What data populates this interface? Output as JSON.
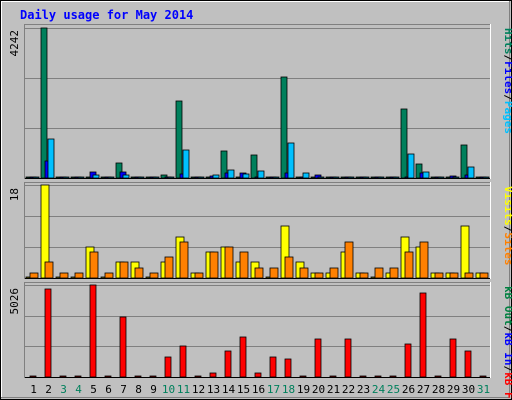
{
  "title": "Daily usage for May 2014",
  "colors": {
    "page_bg": "#c0c0c0",
    "panel_bg": "#c0c0c0",
    "title": "#0000ff",
    "hits": "#00805c",
    "files": "#0000ff",
    "pages": "#00c0ff",
    "visits": "#ffff00",
    "sites": "#ff8000",
    "kb_in": "#0000ff",
    "kb_out": "#008040",
    "kb_f": "#ff0000",
    "weekend_label": "#00805c",
    "weekday_label": "#000000"
  },
  "panel_labels": {
    "top": [
      {
        "text": "Pages",
        "color": "#00c0ff"
      },
      {
        "text": "/",
        "color": "#000000"
      },
      {
        "text": "Files",
        "color": "#0000ff"
      },
      {
        "text": "/",
        "color": "#000000"
      },
      {
        "text": "Hits",
        "color": "#00805c"
      }
    ],
    "middle": [
      {
        "text": "Sites",
        "color": "#ff8000"
      },
      {
        "text": "/",
        "color": "#000000"
      },
      {
        "text": "Visits",
        "color": "#ffff00"
      }
    ],
    "bottom": [
      {
        "text": "kB F",
        "color": "#ff0000"
      },
      {
        "text": "/",
        "color": "#000000"
      },
      {
        "text": "kB In",
        "color": "#0000ff"
      },
      {
        "text": "/",
        "color": "#000000"
      },
      {
        "text": "kB Out",
        "color": "#008040"
      }
    ]
  },
  "chart_data": [
    {
      "type": "bar",
      "panel": "top",
      "ymax_label": "4242",
      "ylim": [
        0,
        4242
      ],
      "grid": true,
      "categories": [
        "1",
        "2",
        "3",
        "4",
        "5",
        "6",
        "7",
        "8",
        "9",
        "10",
        "11",
        "12",
        "13",
        "14",
        "15",
        "16",
        "17",
        "18",
        "19",
        "20",
        "21",
        "22",
        "23",
        "24",
        "25",
        "26",
        "27",
        "28",
        "29",
        "30",
        "31"
      ],
      "weekend_days": [
        3,
        4,
        10,
        11,
        17,
        18,
        24,
        25,
        31
      ],
      "series": [
        {
          "name": "Hits",
          "values": [
            20,
            4242,
            20,
            20,
            20,
            20,
            420,
            20,
            20,
            80,
            2180,
            20,
            20,
            760,
            20,
            640,
            20,
            2860,
            20,
            20,
            20,
            20,
            20,
            20,
            20,
            1950,
            400,
            20,
            20,
            920,
            20
          ]
        },
        {
          "name": "Files",
          "values": [
            10,
            480,
            10,
            10,
            180,
            10,
            160,
            10,
            10,
            10,
            110,
            10,
            70,
            130,
            130,
            10,
            10,
            150,
            40,
            80,
            10,
            30,
            10,
            10,
            10,
            20,
            130,
            10,
            60,
            80,
            10
          ]
        },
        {
          "name": "Pages",
          "values": [
            0,
            1100,
            0,
            0,
            80,
            0,
            80,
            0,
            0,
            0,
            780,
            0,
            80,
            220,
            110,
            200,
            30,
            1000,
            150,
            10,
            0,
            40,
            0,
            0,
            0,
            680,
            160,
            30,
            10,
            300,
            0
          ]
        }
      ]
    },
    {
      "type": "bar",
      "panel": "middle",
      "ymax_label": "18",
      "ylim": [
        0,
        18
      ],
      "grid": true,
      "categories": [
        "1",
        "2",
        "3",
        "4",
        "5",
        "6",
        "7",
        "8",
        "9",
        "10",
        "11",
        "12",
        "13",
        "14",
        "15",
        "16",
        "17",
        "18",
        "19",
        "20",
        "21",
        "22",
        "23",
        "24",
        "25",
        "26",
        "27",
        "28",
        "29",
        "30",
        "31"
      ],
      "weekend_days": [
        3,
        4,
        10,
        11,
        17,
        18,
        24,
        25,
        31
      ],
      "series": [
        {
          "name": "Visits",
          "values": [
            0,
            18,
            0,
            0,
            6,
            0,
            3,
            3,
            0,
            3,
            8,
            1,
            5,
            6,
            3,
            3,
            0,
            10,
            3,
            1,
            1,
            5,
            1,
            0,
            1,
            8,
            6,
            1,
            1,
            10,
            1
          ]
        },
        {
          "name": "Sites",
          "values": [
            1,
            3,
            1,
            1,
            5,
            1,
            3,
            2,
            1,
            4,
            7,
            1,
            5,
            6,
            5,
            2,
            2,
            4,
            2,
            1,
            2,
            7,
            1,
            2,
            2,
            5,
            7,
            1,
            1,
            1,
            1
          ]
        }
      ]
    },
    {
      "type": "bar",
      "panel": "bottom",
      "ymax_label": "5026",
      "ylim": [
        0,
        5026
      ],
      "grid": true,
      "categories": [
        "1",
        "2",
        "3",
        "4",
        "5",
        "6",
        "7",
        "8",
        "9",
        "10",
        "11",
        "12",
        "13",
        "14",
        "15",
        "16",
        "17",
        "18",
        "19",
        "20",
        "21",
        "22",
        "23",
        "24",
        "25",
        "26",
        "27",
        "28",
        "29",
        "30",
        "31"
      ],
      "weekend_days": [
        3,
        4,
        10,
        11,
        17,
        18,
        24,
        25,
        31
      ],
      "series": [
        {
          "name": "kB F",
          "values": [
            0,
            4800,
            0,
            0,
            5026,
            0,
            3300,
            0,
            0,
            1100,
            1700,
            0,
            200,
            1400,
            2200,
            200,
            1100,
            1000,
            0,
            2100,
            0,
            2100,
            0,
            0,
            0,
            1800,
            4600,
            0,
            2100,
            1400,
            0
          ]
        }
      ]
    }
  ]
}
